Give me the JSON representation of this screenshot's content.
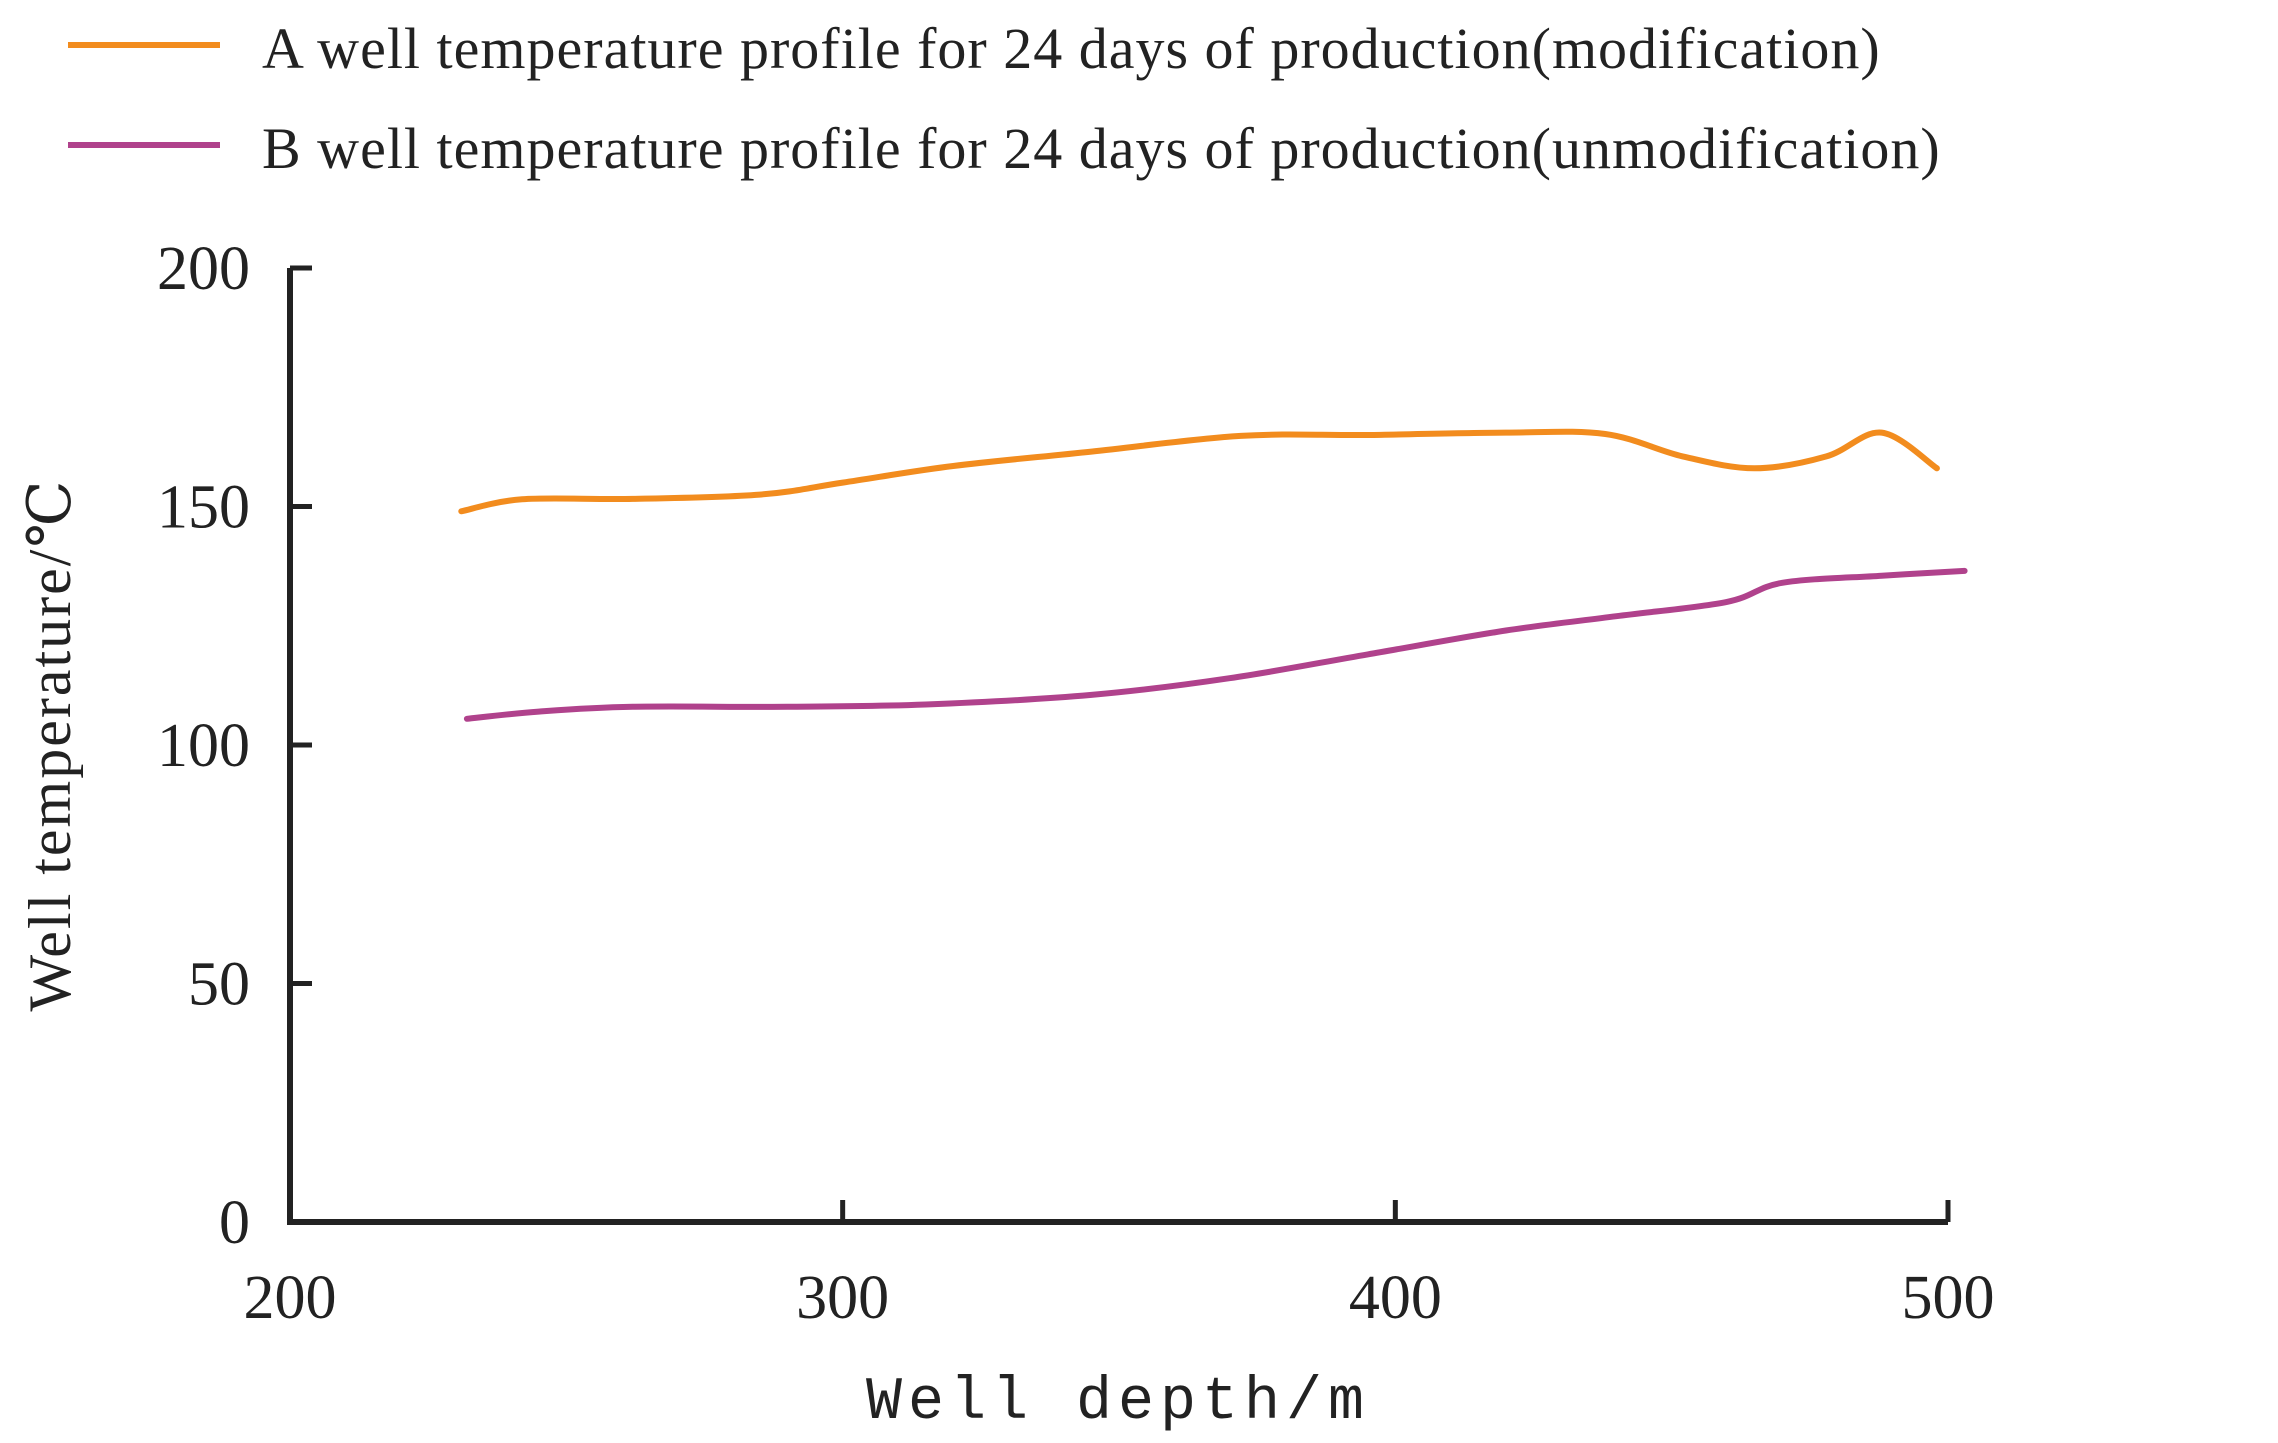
{
  "chart_data": {
    "type": "line",
    "title": "",
    "xlabel": "Well depth/m",
    "ylabel": "Well temperature/℃",
    "xlim": [
      200,
      500
    ],
    "ylim": [
      0,
      200
    ],
    "xticks": [
      200,
      300,
      400,
      500
    ],
    "yticks": [
      0,
      50,
      100,
      150,
      200
    ],
    "grid": false,
    "legend_position": "top-left",
    "series": [
      {
        "name": "A well temperature profile for 24 days of production(modification)",
        "color": "#f28c1e",
        "x": [
          231,
          242,
          262,
          285,
          300,
          320,
          345,
          372,
          395,
          420,
          438,
          452,
          465,
          478,
          488,
          498
        ],
        "y": [
          149,
          151.5,
          151.6,
          152.5,
          155,
          158.5,
          161.5,
          164.8,
          165,
          165.5,
          165.2,
          160.5,
          158,
          160.5,
          165.5,
          158
        ]
      },
      {
        "name": "B well temperature profile for 24 days of production(unmodification)",
        "color": "#b0428c",
        "x": [
          232,
          245,
          262,
          290,
          315,
          345,
          370,
          395,
          420,
          440,
          460,
          470,
          488,
          503
        ],
        "y": [
          105.5,
          107,
          108,
          108,
          108.5,
          110.5,
          114,
          119,
          124,
          127,
          130,
          134,
          135.5,
          136.5
        ]
      }
    ]
  }
}
